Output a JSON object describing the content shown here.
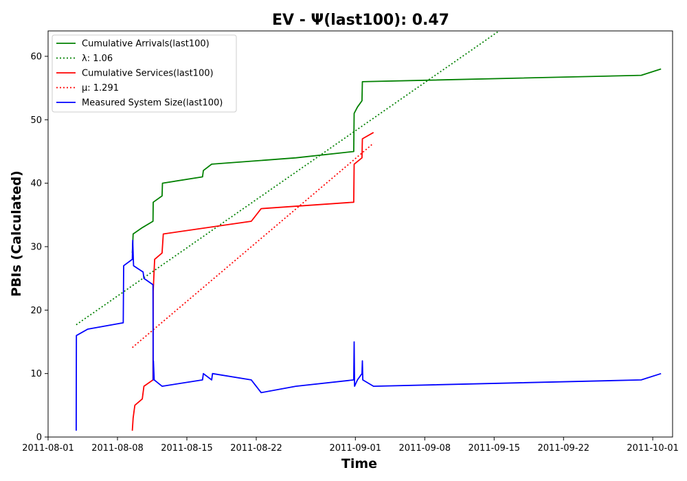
{
  "chart_data": {
    "type": "line",
    "title": "EV -  Ψ(last100): 0.47",
    "xlabel": "Time",
    "ylabel": "PBIs (Calculated)",
    "xlim": [
      "2011-08-01",
      "2011-10-03"
    ],
    "ylim": [
      0,
      64
    ],
    "x_ticks": [
      "2011-08-01",
      "2011-08-08",
      "2011-08-15",
      "2011-08-22",
      "2011-09-01",
      "2011-09-08",
      "2011-09-15",
      "2011-09-22",
      "2011-10-01"
    ],
    "y_ticks": [
      0,
      10,
      20,
      30,
      40,
      50,
      60
    ],
    "grid": false,
    "legend_position": "top-left",
    "series": [
      {
        "name": "Cumulative Arrivals(last100)",
        "color": "#008000",
        "style": "solid",
        "points": [
          [
            "2011-08-09T12:00",
            29
          ],
          [
            "2011-08-09T14:00",
            32
          ],
          [
            "2011-08-10T12:00",
            33
          ],
          [
            "2011-08-11T14:00",
            34
          ],
          [
            "2011-08-11T14:30",
            37
          ],
          [
            "2011-08-12T12:00",
            38
          ],
          [
            "2011-08-12T13:00",
            40
          ],
          [
            "2011-08-16T14:00",
            41
          ],
          [
            "2011-08-16T16:00",
            42
          ],
          [
            "2011-08-17T12:00",
            43
          ],
          [
            "2011-08-26T00:00",
            44
          ],
          [
            "2011-08-31T20:00",
            45
          ],
          [
            "2011-08-31T21:00",
            51
          ],
          [
            "2011-09-01T05:00",
            52
          ],
          [
            "2011-09-01T16:00",
            53
          ],
          [
            "2011-09-01T17:00",
            56
          ],
          [
            "2011-09-29T20:00",
            57
          ],
          [
            "2011-10-01T20:00",
            58
          ]
        ]
      },
      {
        "name": "λ: 1.06",
        "color": "#008000",
        "style": "dotted",
        "points": [
          [
            "2011-08-03T20:00",
            17.7
          ],
          [
            "2011-09-15T12:00",
            64
          ]
        ]
      },
      {
        "name": "Cumulative Services(last100)",
        "color": "#ff0000",
        "style": "solid",
        "points": [
          [
            "2011-08-09T12:00",
            1
          ],
          [
            "2011-08-09T14:00",
            3
          ],
          [
            "2011-08-09T18:00",
            5
          ],
          [
            "2011-08-10T12:00",
            6
          ],
          [
            "2011-08-10T16:00",
            8
          ],
          [
            "2011-08-11T14:00",
            9
          ],
          [
            "2011-08-11T14:30",
            23
          ],
          [
            "2011-08-11T18:00",
            28
          ],
          [
            "2011-08-12T12:00",
            29
          ],
          [
            "2011-08-12T15:00",
            32
          ],
          [
            "2011-08-21T12:00",
            34
          ],
          [
            "2011-08-22T12:00",
            36
          ],
          [
            "2011-08-31T20:00",
            37
          ],
          [
            "2011-08-31T21:00",
            43
          ],
          [
            "2011-09-01T16:00",
            44
          ],
          [
            "2011-09-01T17:00",
            47
          ],
          [
            "2011-09-02T20:00",
            48
          ]
        ]
      },
      {
        "name": "μ: 1.291",
        "color": "#ff0000",
        "style": "dotted",
        "points": [
          [
            "2011-08-09T12:00",
            14.1
          ],
          [
            "2011-09-02T20:00",
            46.3
          ]
        ]
      },
      {
        "name": "Measured System Size(last100)",
        "color": "#0000ff",
        "style": "solid",
        "points": [
          [
            "2011-08-03T20:00",
            1
          ],
          [
            "2011-08-03T20:30",
            16
          ],
          [
            "2011-08-05T00:00",
            17
          ],
          [
            "2011-08-08T14:00",
            18
          ],
          [
            "2011-08-08T15:00",
            27
          ],
          [
            "2011-08-09T12:00",
            28
          ],
          [
            "2011-08-09T13:00",
            31
          ],
          [
            "2011-08-09T15:00",
            27
          ],
          [
            "2011-08-10T14:00",
            26
          ],
          [
            "2011-08-10T16:00",
            25
          ],
          [
            "2011-08-11T14:00",
            24
          ],
          [
            "2011-08-11T14:30",
            9
          ],
          [
            "2011-08-11T15:00",
            12
          ],
          [
            "2011-08-11T17:00",
            9
          ],
          [
            "2011-08-12T12:00",
            8
          ],
          [
            "2011-08-16T14:00",
            9
          ],
          [
            "2011-08-16T16:00",
            10
          ],
          [
            "2011-08-17T12:00",
            9
          ],
          [
            "2011-08-17T14:00",
            10
          ],
          [
            "2011-08-21T12:00",
            9
          ],
          [
            "2011-08-22T12:00",
            7
          ],
          [
            "2011-08-26T00:00",
            8
          ],
          [
            "2011-08-31T20:00",
            9
          ],
          [
            "2011-08-31T21:00",
            15
          ],
          [
            "2011-08-31T22:00",
            8
          ],
          [
            "2011-09-01T05:00",
            9
          ],
          [
            "2011-09-01T16:00",
            10
          ],
          [
            "2011-09-01T17:00",
            12
          ],
          [
            "2011-09-01T18:00",
            9
          ],
          [
            "2011-09-02T20:00",
            8
          ],
          [
            "2011-09-29T20:00",
            9
          ],
          [
            "2011-10-01T20:00",
            10
          ]
        ]
      }
    ]
  }
}
